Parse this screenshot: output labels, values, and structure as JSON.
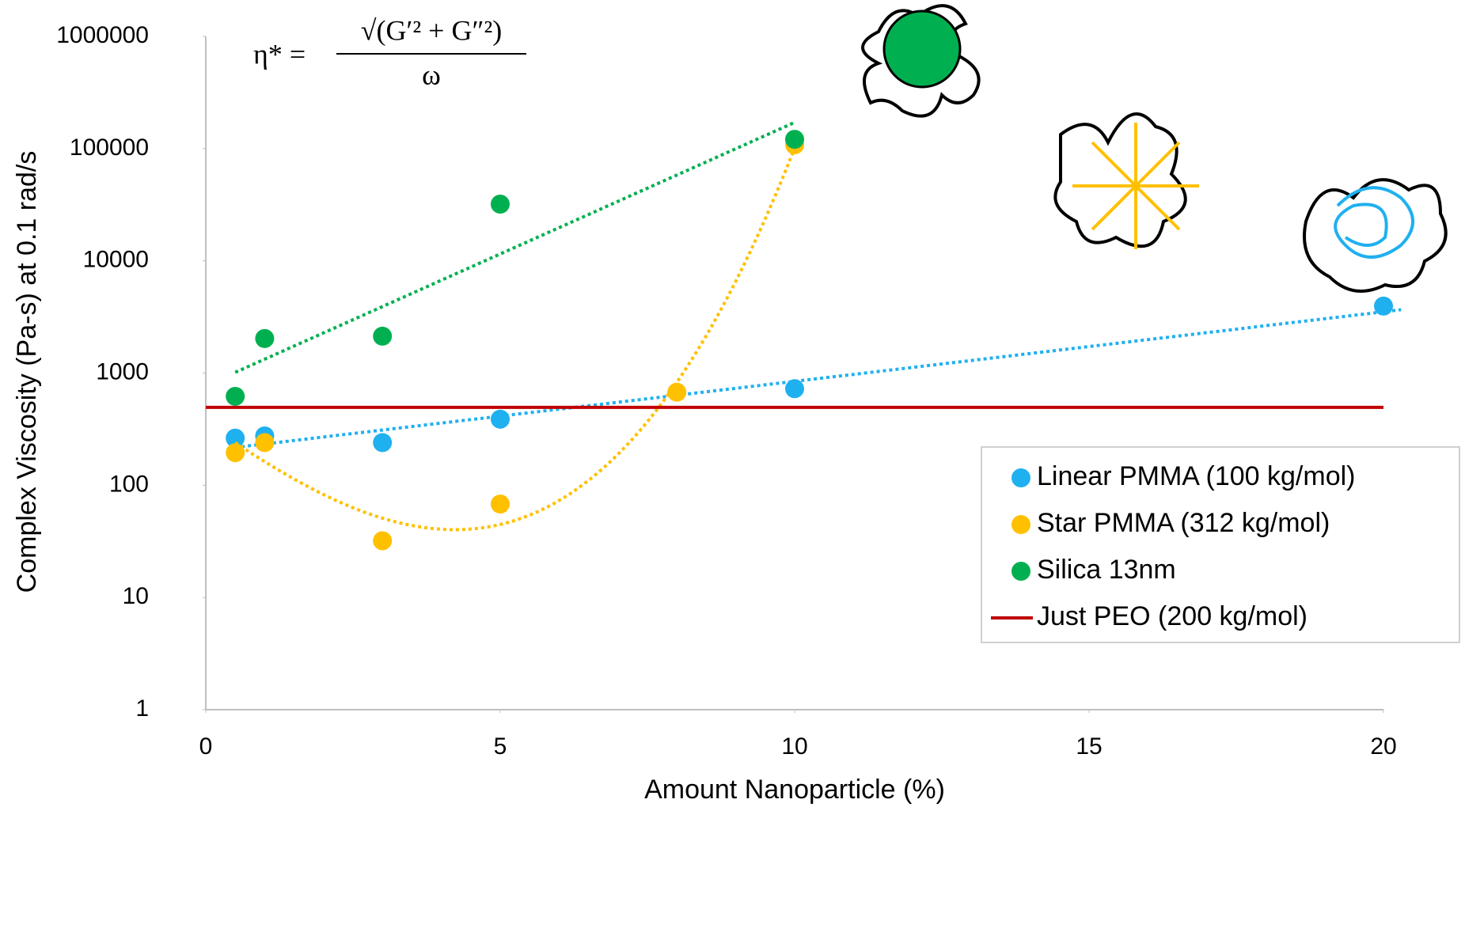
{
  "chart_data": {
    "type": "scatter",
    "x_label": "Amount Nanoparticle (%)",
    "y_label": "Complex Viscosity (Pa-s) at 0.1 rad/s",
    "annotation": {
      "lhs": "η* =",
      "numerator": "√(G′² + G″²)",
      "denominator": "ω"
    },
    "xlim": [
      0,
      20
    ],
    "xticks": [
      0,
      5,
      10,
      15,
      20
    ],
    "ylim": [
      1,
      1000000
    ],
    "yticks": [
      1,
      10,
      100,
      1000,
      10000,
      100000,
      1000000
    ],
    "log_y": true,
    "grid": false,
    "legend": "right",
    "series": [
      {
        "name": "Linear PMMA (100 kg/mol)",
        "color": "#1fb0f0",
        "mark": "point",
        "trendline": "exponential",
        "x": [
          0.5,
          1,
          3,
          5,
          10,
          20
        ],
        "values": [
          263,
          275,
          240,
          388,
          725,
          3950
        ]
      },
      {
        "name": "Star PMMA (312 kg/mol)",
        "color": "#ffc000",
        "mark": "point",
        "trendline": "polynomial",
        "x": [
          0.5,
          1,
          3,
          5,
          8,
          10
        ],
        "values": [
          195,
          240,
          32,
          68,
          675,
          108000
        ]
      },
      {
        "name": "Silica 13nm",
        "color": "#00b050",
        "mark": "point",
        "trendline": "exponential",
        "x": [
          0.5,
          1,
          3,
          5,
          10
        ],
        "values": [
          620,
          2030,
          2130,
          32000,
          121000
        ]
      },
      {
        "name": "Just PEO (200 kg/mol)",
        "color": "#c00000",
        "mark": "line",
        "x": [
          0,
          20
        ],
        "values": [
          495,
          495
        ]
      }
    ]
  }
}
